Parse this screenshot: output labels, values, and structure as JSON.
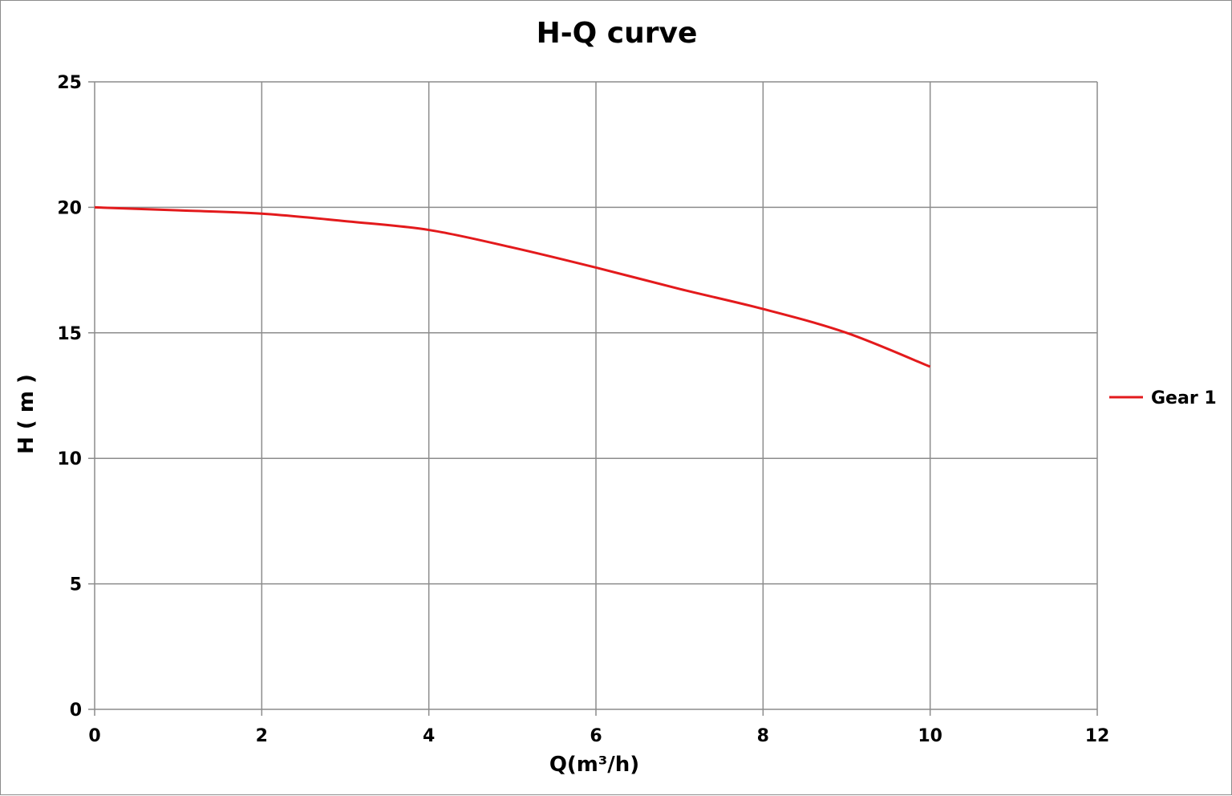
{
  "chart_data": {
    "type": "line",
    "title": "H-Q  curve",
    "xlabel": "Q(m³/h)",
    "ylabel": "H ( m )",
    "xlim": [
      0,
      12
    ],
    "ylim": [
      0,
      25
    ],
    "xticks": [
      "0",
      "2",
      "4",
      "6",
      "8",
      "10",
      "12"
    ],
    "yticks": [
      "0",
      "5",
      "10",
      "15",
      "20",
      "25"
    ],
    "grid": true,
    "legend_position": "right",
    "series": [
      {
        "name": "Gear 1",
        "color": "#e31a1c",
        "x": [
          0,
          1,
          2,
          3,
          4,
          5,
          6,
          7,
          8,
          9,
          10
        ],
        "y": [
          20,
          19.88,
          19.75,
          19.45,
          19.1,
          18.4,
          17.6,
          16.75,
          15.95,
          15.0,
          13.65
        ]
      }
    ]
  }
}
